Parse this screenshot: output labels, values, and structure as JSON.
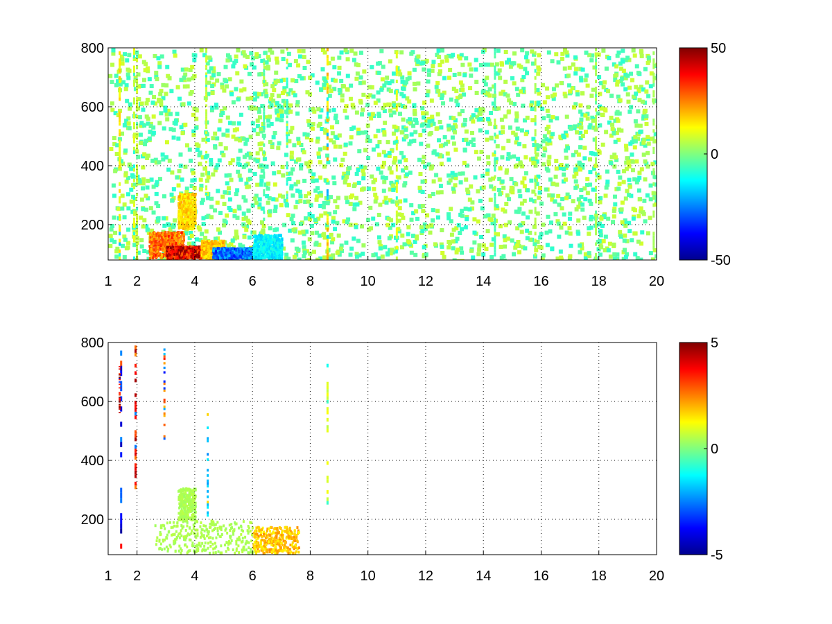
{
  "chart_data": [
    {
      "type": "heatmap",
      "title": "",
      "xlabel": "",
      "ylabel": "",
      "xlim": [
        1,
        20
      ],
      "ylim": [
        80,
        800
      ],
      "x_ticks": [
        1,
        2,
        4,
        6,
        8,
        10,
        12,
        14,
        16,
        18,
        20
      ],
      "y_ticks": [
        200,
        400,
        600,
        800
      ],
      "grid": true,
      "colormap": "jet",
      "clim": [
        -50,
        50
      ],
      "colorbar_ticks": [
        50,
        0,
        -50
      ],
      "colorbar_placement": "right",
      "vertical_streaks": [
        {
          "x": 1.4,
          "y_range": [
            80,
            800
          ],
          "value": 15
        },
        {
          "x": 1.9,
          "y_range": [
            80,
            800
          ],
          "value": 10
        },
        {
          "x": 2.0,
          "y_range": [
            80,
            800
          ],
          "value": 8
        },
        {
          "x": 4.4,
          "y_range": [
            300,
            800
          ],
          "value": 8
        },
        {
          "x": 6.4,
          "y_range": [
            80,
            800
          ],
          "value": -5
        },
        {
          "x": 7.2,
          "y_range": [
            250,
            800
          ],
          "value": -8
        },
        {
          "x": 8.6,
          "y_range": [
            80,
            800
          ],
          "value": 18
        },
        {
          "x": 11.0,
          "y_range": [
            80,
            800
          ],
          "value": 10
        },
        {
          "x": 14.4,
          "y_range": [
            80,
            800
          ],
          "value": -6
        },
        {
          "x": 15.8,
          "y_range": [
            80,
            800
          ],
          "value": 6
        },
        {
          "x": 17.9,
          "y_range": [
            80,
            800
          ],
          "value": 5
        },
        {
          "x": 19.9,
          "y_range": [
            80,
            800
          ],
          "value": 4
        }
      ],
      "regions": [
        {
          "x_range": [
            2.4,
            3.6
          ],
          "y_range": [
            80,
            170
          ],
          "value": 30
        },
        {
          "x_range": [
            3.0,
            4.2
          ],
          "y_range": [
            80,
            120
          ],
          "value": 45
        },
        {
          "x_range": [
            4.2,
            5.0
          ],
          "y_range": [
            80,
            140
          ],
          "value": 20
        },
        {
          "x_range": [
            4.6,
            6.0
          ],
          "y_range": [
            80,
            115
          ],
          "value": -30
        },
        {
          "x_range": [
            6.0,
            7.0
          ],
          "y_range": [
            80,
            160
          ],
          "value": -15
        },
        {
          "x_range": [
            3.4,
            4.0
          ],
          "y_range": [
            180,
            300
          ],
          "value": 18
        }
      ]
    },
    {
      "type": "heatmap",
      "title": "",
      "xlabel": "",
      "ylabel": "",
      "xlim": [
        1,
        20
      ],
      "ylim": [
        80,
        800
      ],
      "x_ticks": [
        1,
        2,
        4,
        6,
        8,
        10,
        12,
        14,
        16,
        18,
        20
      ],
      "y_ticks": [
        200,
        400,
        600,
        800
      ],
      "grid": true,
      "colormap": "jet",
      "clim": [
        -5,
        5
      ],
      "colorbar_ticks": [
        5,
        0,
        -5
      ],
      "colorbar_placement": "right",
      "vertical_streaks": [
        {
          "x": 1.45,
          "y_range": [
            100,
            790
          ],
          "value": -4
        },
        {
          "x": 1.4,
          "y_range": [
            560,
            720
          ],
          "value": 5
        },
        {
          "x": 1.95,
          "y_range": [
            290,
            790
          ],
          "value": 4
        },
        {
          "x": 2.95,
          "y_range": [
            470,
            780
          ],
          "value": 3
        },
        {
          "x": 4.45,
          "y_range": [
            200,
            560
          ],
          "value": -2
        },
        {
          "x": 8.6,
          "y_range": [
            250,
            740
          ],
          "value": 1
        }
      ],
      "regions": [
        {
          "x_range": [
            2.6,
            6.0
          ],
          "y_range": [
            80,
            190
          ],
          "value": 0.5
        },
        {
          "x_range": [
            3.4,
            4.0
          ],
          "y_range": [
            190,
            300
          ],
          "value": 0.5
        },
        {
          "x_range": [
            6.0,
            7.6
          ],
          "y_range": [
            80,
            170
          ],
          "value": 2
        }
      ]
    }
  ]
}
